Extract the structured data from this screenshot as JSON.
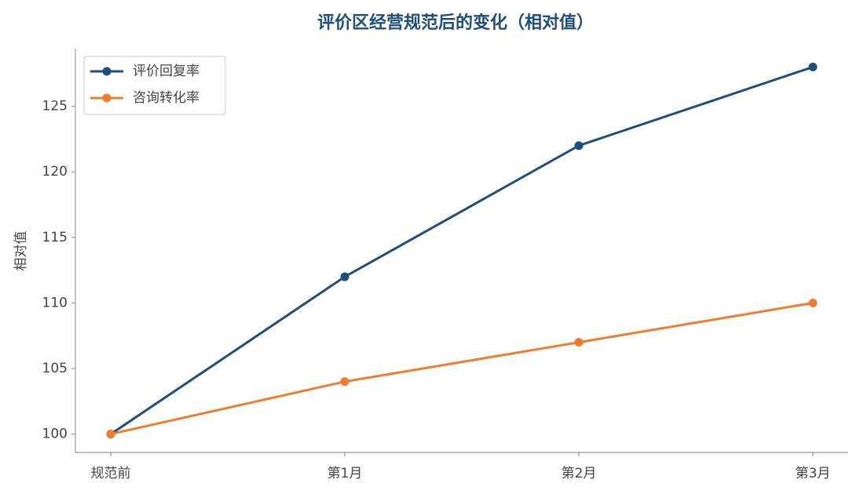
{
  "chart_data": {
    "type": "line",
    "title": "评价区经营规范后的变化（相对值）",
    "y_label": "相对值",
    "categories": [
      "规范前",
      "第1月",
      "第2月",
      "第3月"
    ],
    "series": [
      {
        "name": "评价回复率",
        "color": "#1f4e79",
        "values": [
          100,
          112,
          122,
          128
        ]
      },
      {
        "name": "咨询转化率",
        "color": "#ed7d31",
        "values": [
          100,
          104,
          107,
          110
        ]
      }
    ],
    "ylim": [
      98.6,
      129.4
    ],
    "yticks": [
      100,
      105,
      110,
      115,
      120,
      125
    ],
    "grid": false,
    "legend": "upper left"
  }
}
